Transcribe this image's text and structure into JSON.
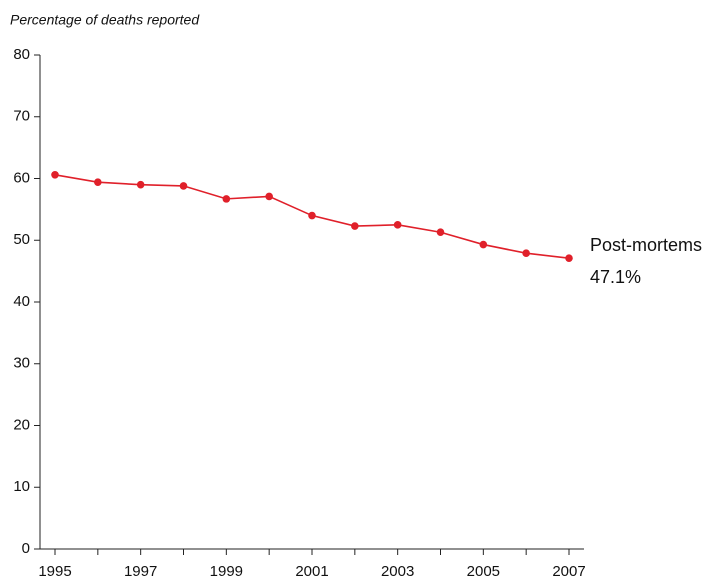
{
  "chart_data": {
    "type": "line",
    "y_axis_label": "Percentage of deaths reported",
    "x": [
      1995,
      1996,
      1997,
      1998,
      1999,
      2000,
      2001,
      2002,
      2003,
      2004,
      2005,
      2006,
      2007
    ],
    "series": [
      {
        "name": "Post-mortems",
        "color": "#e0202a",
        "values": [
          60.6,
          59.4,
          59.0,
          58.8,
          56.7,
          57.1,
          54.0,
          52.3,
          52.5,
          51.3,
          49.3,
          47.9,
          47.1
        ],
        "value_labels": [
          null,
          null,
          null,
          null,
          null,
          null,
          null,
          null,
          null,
          null,
          null,
          null,
          "47.1%"
        ]
      }
    ],
    "xlim": [
      1995,
      2007
    ],
    "xticks": [
      1995,
      1997,
      1999,
      2001,
      2003,
      2005,
      2007
    ],
    "xminor_ticks": [
      1996,
      1998,
      2000,
      2002,
      2004,
      2006
    ],
    "ylim": [
      0,
      80
    ],
    "yticks": [
      0,
      10,
      20,
      30,
      40,
      50,
      60,
      70,
      80
    ],
    "grid": false
  }
}
